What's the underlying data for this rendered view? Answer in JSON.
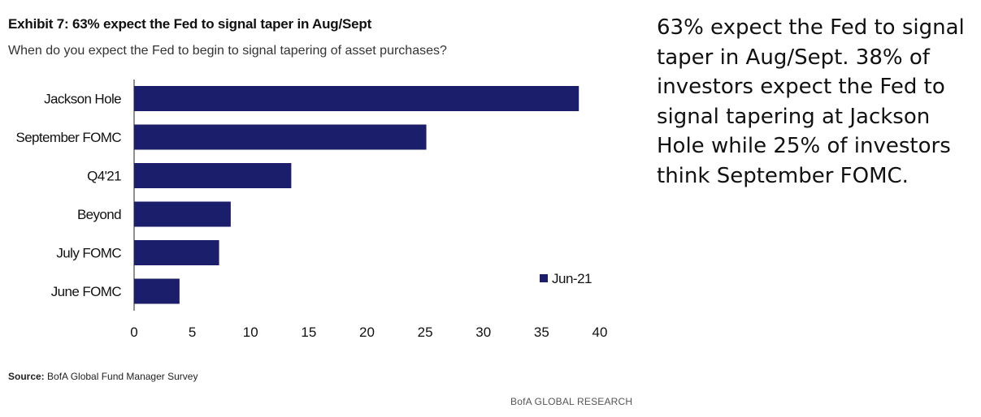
{
  "exhibit": {
    "title": "Exhibit 7: 63% expect the Fed to signal taper in Aug/Sept",
    "subtitle": "When do you expect the Fed to begin to signal tapering of asset purchases?"
  },
  "source": {
    "label": "Source:",
    "text": " BofA Global Fund Manager Survey"
  },
  "brand": "BofA GLOBAL RESEARCH",
  "commentary": "63% expect the Fed to signal taper in Aug/Sept. 38% of investors expect the Fed to signal tapering at Jackson Hole while 25% of investors think September FOMC.",
  "colors": {
    "bar": "#1b1f6b"
  },
  "chart_data": {
    "type": "bar",
    "orientation": "horizontal",
    "categories": [
      "Jackson Hole",
      "September FOMC",
      "Q4'21",
      "Beyond",
      "July FOMC",
      "June FOMC"
    ],
    "series": [
      {
        "name": "Jun-21",
        "values": [
          38.2,
          25.1,
          13.5,
          8.3,
          7.3,
          3.9
        ]
      }
    ],
    "xlim": [
      0,
      40
    ],
    "xticks": [
      0,
      5,
      10,
      15,
      20,
      25,
      30,
      35,
      40
    ],
    "grid": false,
    "legend_position": "right"
  }
}
